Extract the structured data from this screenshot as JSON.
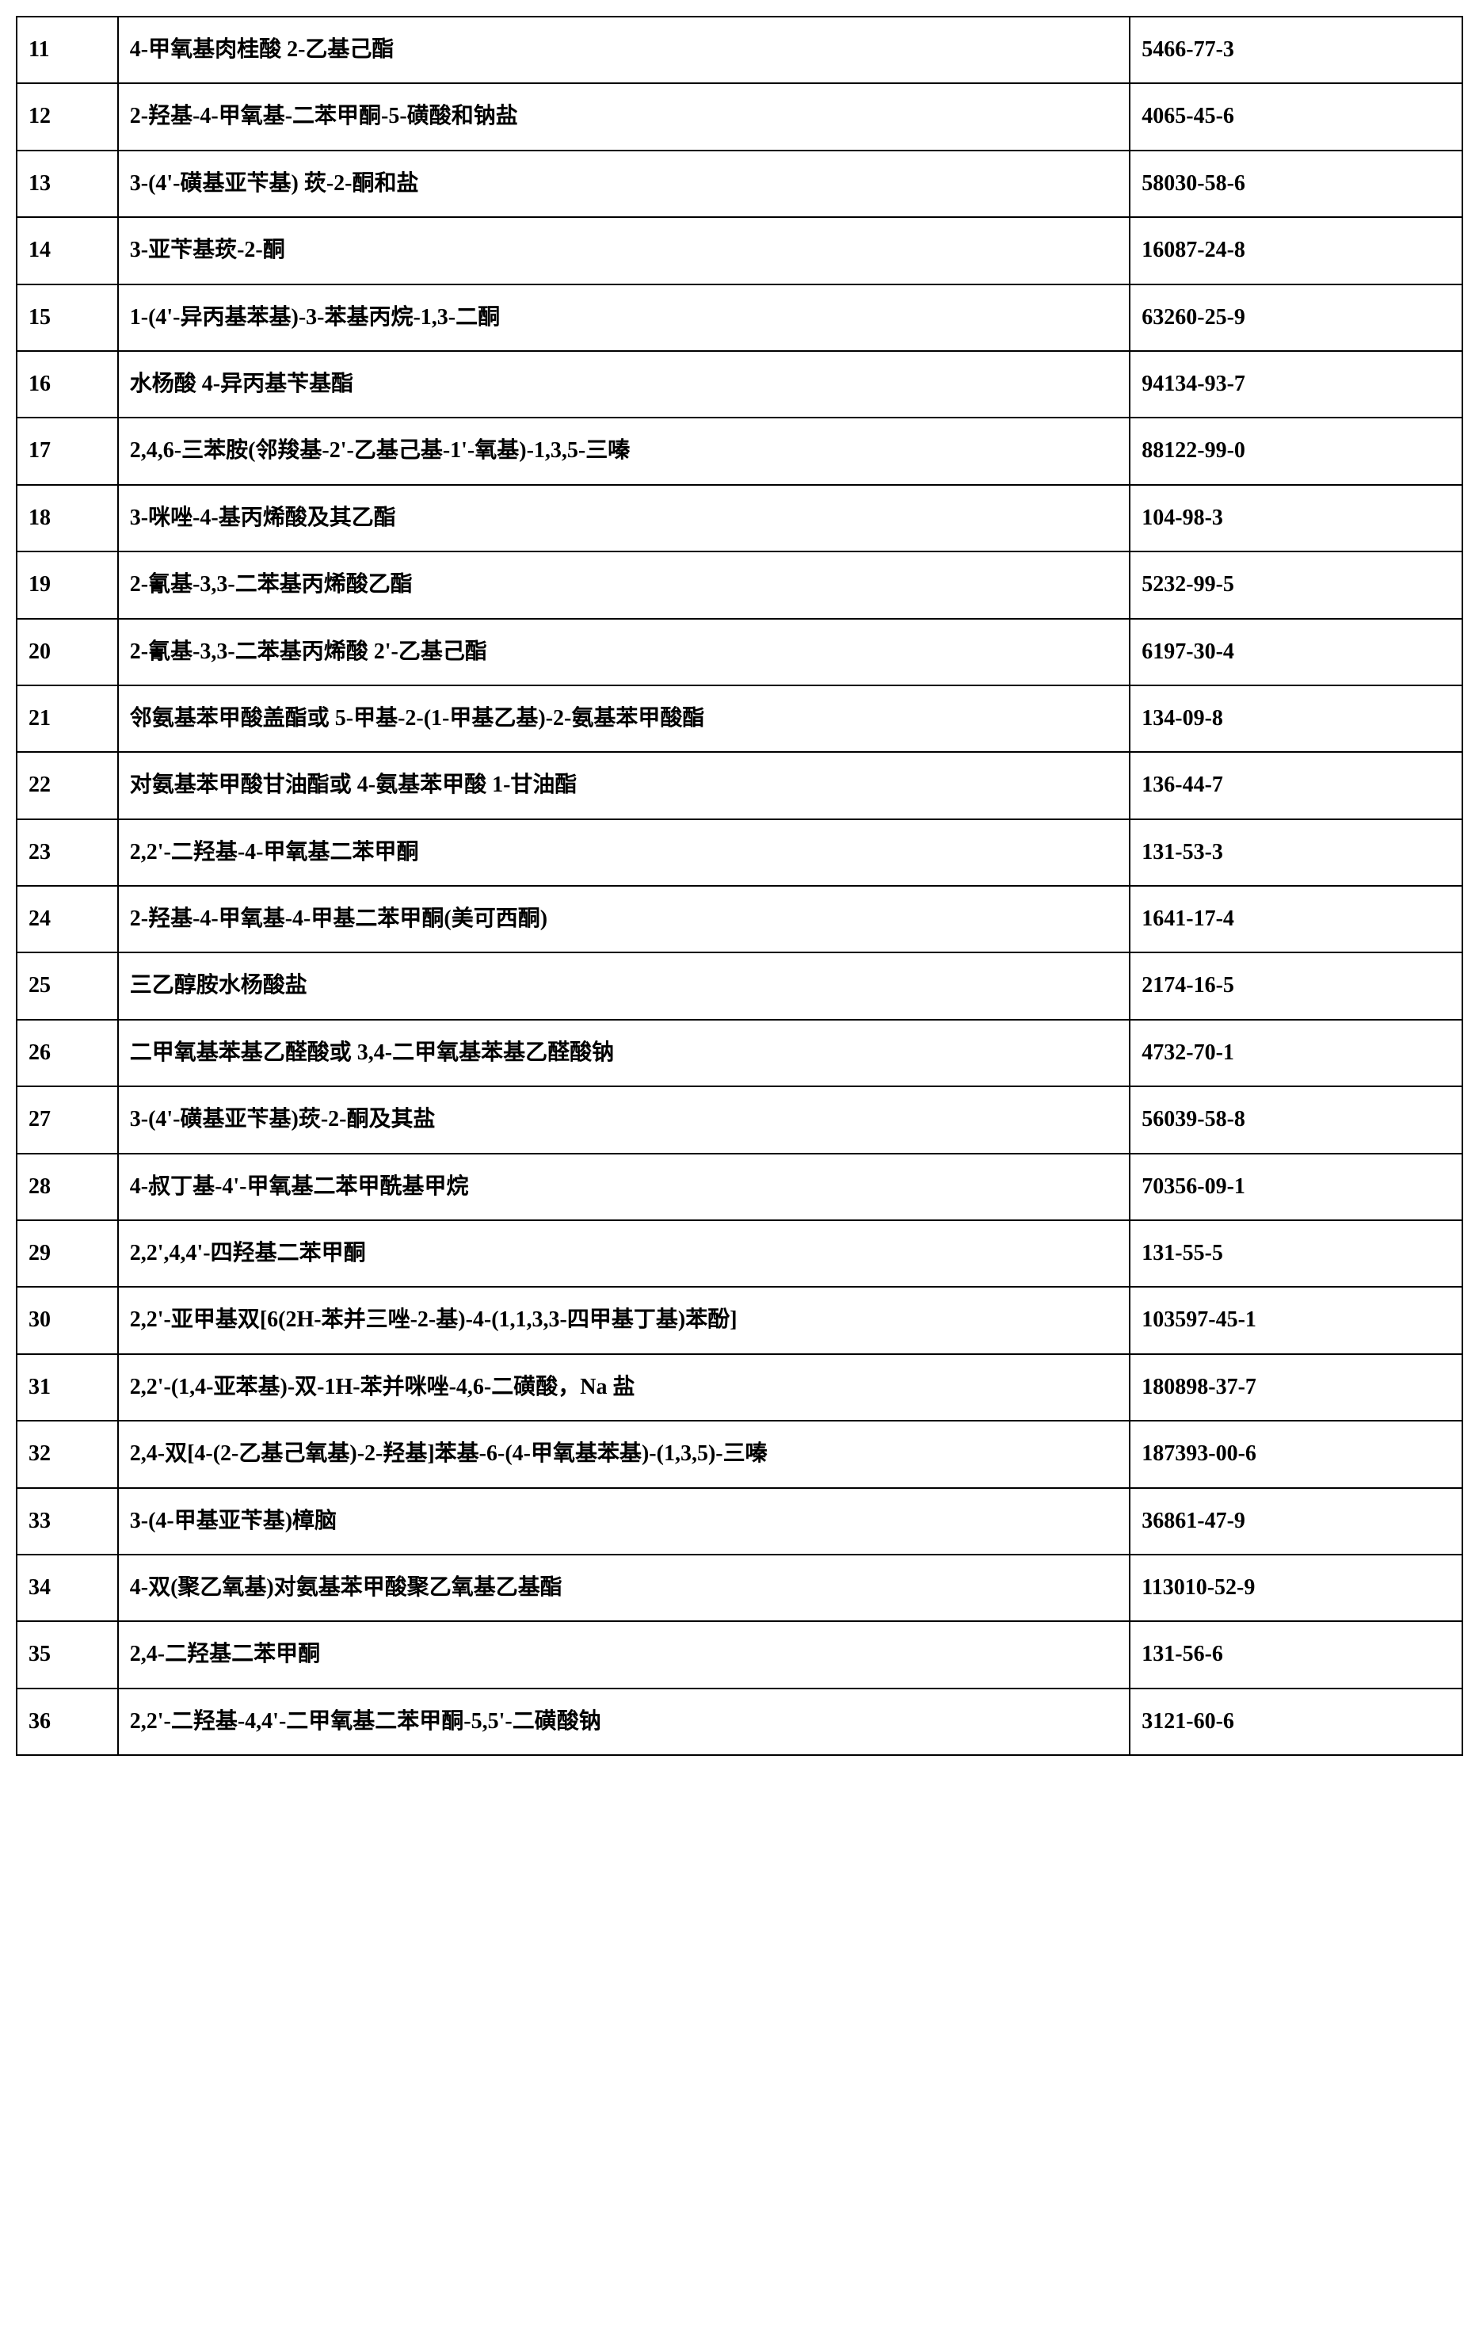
{
  "table": {
    "rows": [
      {
        "num": "11",
        "name": "4-甲氧基肉桂酸 2-乙基己酯",
        "cas": "5466-77-3"
      },
      {
        "num": "12",
        "name": "2-羟基-4-甲氧基-二苯甲酮-5-磺酸和钠盐",
        "cas": "4065-45-6"
      },
      {
        "num": "13",
        "name": "3-(4'-磺基亚苄基) 莰-2-酮和盐",
        "cas": "58030-58-6"
      },
      {
        "num": "14",
        "name": "3-亚苄基莰-2-酮",
        "cas": "16087-24-8"
      },
      {
        "num": "15",
        "name": "1-(4'-异丙基苯基)-3-苯基丙烷-1,3-二酮",
        "cas": "63260-25-9"
      },
      {
        "num": "16",
        "name": "水杨酸 4-异丙基苄基酯",
        "cas": "94134-93-7"
      },
      {
        "num": "17",
        "name": "2,4,6-三苯胺(邻羧基-2'-乙基己基-1'-氧基)-1,3,5-三嗪",
        "cas": "88122-99-0"
      },
      {
        "num": "18",
        "name": "3-咪唑-4-基丙烯酸及其乙酯",
        "cas": "104-98-3"
      },
      {
        "num": "19",
        "name": "2-氰基-3,3-二苯基丙烯酸乙酯",
        "cas": "5232-99-5"
      },
      {
        "num": "20",
        "name": "2-氰基-3,3-二苯基丙烯酸 2'-乙基己酯",
        "cas": "6197-30-4"
      },
      {
        "num": "21",
        "name": "邻氨基苯甲酸盖酯或 5-甲基-2-(1-甲基乙基)-2-氨基苯甲酸酯",
        "cas": "134-09-8"
      },
      {
        "num": "22",
        "name": "对氨基苯甲酸甘油酯或 4-氨基苯甲酸 1-甘油酯",
        "cas": "136-44-7"
      },
      {
        "num": "23",
        "name": "2,2'-二羟基-4-甲氧基二苯甲酮",
        "cas": "131-53-3"
      },
      {
        "num": "24",
        "name": "2-羟基-4-甲氧基-4-甲基二苯甲酮(美可西酮)",
        "cas": "1641-17-4"
      },
      {
        "num": "25",
        "name": "三乙醇胺水杨酸盐",
        "cas": "2174-16-5"
      },
      {
        "num": "26",
        "name": "二甲氧基苯基乙醛酸或 3,4-二甲氧基苯基乙醛酸钠",
        "cas": "4732-70-1"
      },
      {
        "num": "27",
        "name": "3-(4'-磺基亚苄基)莰-2-酮及其盐",
        "cas": "56039-58-8"
      },
      {
        "num": "28",
        "name": "4-叔丁基-4'-甲氧基二苯甲酰基甲烷",
        "cas": "70356-09-1"
      },
      {
        "num": "29",
        "name": "2,2',4,4'-四羟基二苯甲酮",
        "cas": "131-55-5"
      },
      {
        "num": "30",
        "name": "2,2'-亚甲基双[6(2H-苯并三唑-2-基)-4-(1,1,3,3-四甲基丁基)苯酚]",
        "cas": "103597-45-1"
      },
      {
        "num": "31",
        "name": "2,2'-(1,4-亚苯基)-双-1H-苯并咪唑-4,6-二磺酸，Na 盐",
        "cas": "180898-37-7"
      },
      {
        "num": "32",
        "name": "2,4-双[4-(2-乙基己氧基)-2-羟基]苯基-6-(4-甲氧基苯基)-(1,3,5)-三嗪",
        "cas": "187393-00-6"
      },
      {
        "num": "33",
        "name": "3-(4-甲基亚苄基)樟脑",
        "cas": "36861-47-9"
      },
      {
        "num": "34",
        "name": "4-双(聚乙氧基)对氨基苯甲酸聚乙氧基乙基酯",
        "cas": "113010-52-9"
      },
      {
        "num": "35",
        "name": "2,4-二羟基二苯甲酮",
        "cas": "131-56-6"
      },
      {
        "num": "36",
        "name": "2,2'-二羟基-4,4'-二甲氧基二苯甲酮-5,5'-二磺酸钠",
        "cas": "3121-60-6"
      }
    ]
  }
}
